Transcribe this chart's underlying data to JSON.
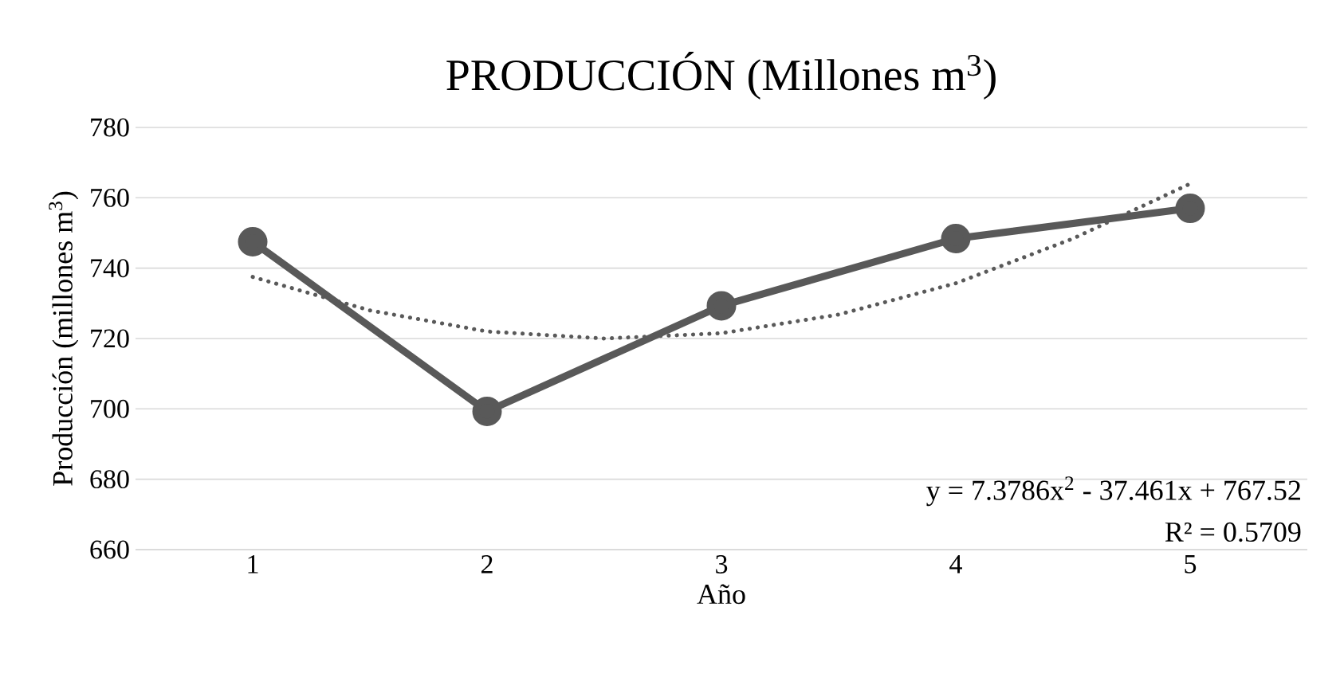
{
  "chart_data": {
    "type": "line",
    "title": "PRODUCCIÓN (Millones m$^{3}$)",
    "xlabel": "Año",
    "ylabel": "Producción (millones m$^{3}$)",
    "x": [
      1,
      2,
      3,
      4,
      5
    ],
    "xlim": [
      0.5,
      5.5
    ],
    "xticks": [
      1,
      2,
      3,
      4,
      5
    ],
    "ylim": [
      660,
      780
    ],
    "yticks": [
      660,
      680,
      700,
      720,
      740,
      760,
      780
    ],
    "grid": "y",
    "series": [
      {
        "color": "#595959",
        "values": [
          747.5,
          699.3,
          729.3,
          748.4,
          757
        ],
        "marker": "circle",
        "line_style": "solid"
      },
      {
        "type": "line",
        "color": "#595959",
        "x": [
          1,
          1.5,
          2,
          2.5,
          3,
          3.5,
          4,
          4.5,
          5
        ],
        "values": [
          737.5,
          728,
          722,
          720,
          721.5,
          726.8,
          735.7,
          748.4,
          764
        ],
        "marker": "none",
        "line_style": "dotted"
      }
    ],
    "annotations": [
      "y = 7.3786x$^{2}$ - 37.461x + 767.52",
      "R² = 0.5709"
    ]
  }
}
